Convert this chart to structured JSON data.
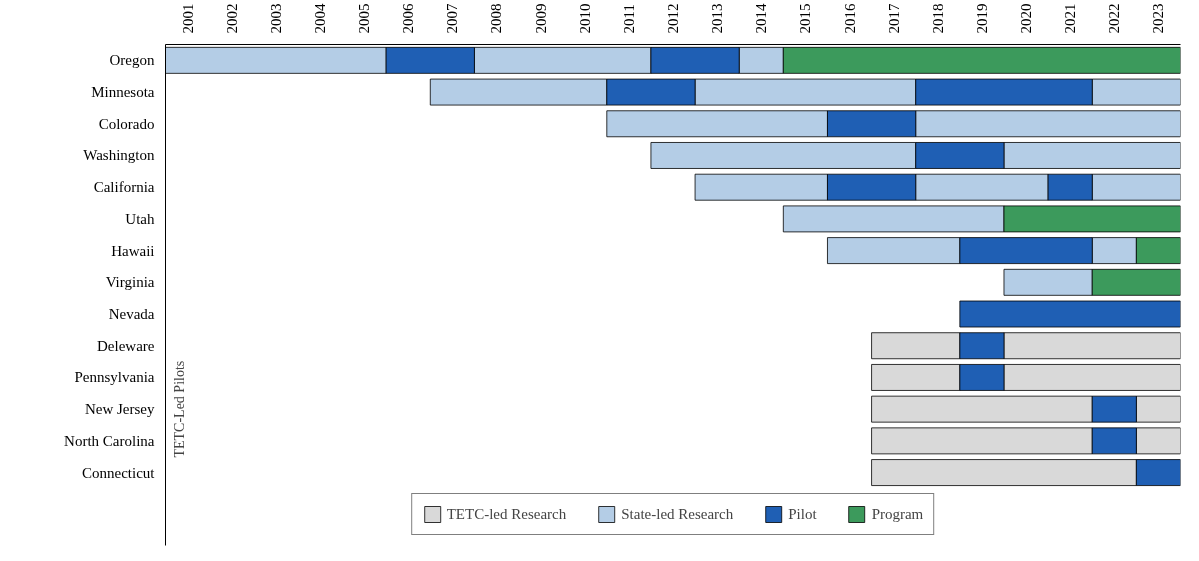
{
  "chart_data": {
    "type": "bar",
    "orientation": "horizontal",
    "grid": false,
    "legend": "bottom",
    "categories": [
      "Oregon",
      "Minnesota",
      "Colorado",
      "Washington",
      "California",
      "Utah",
      "Hawaii",
      "Virginia",
      "Nevada",
      "Deleware",
      "Pennsylvania",
      "New Jersey",
      "North Carolina",
      "Connecticut"
    ],
    "xlim": [
      2001,
      2024
    ],
    "xticks": [
      {
        "value": 2001.5,
        "label": "2001"
      },
      {
        "value": 2002.5,
        "label": "2002"
      },
      {
        "value": 2003.5,
        "label": "2003"
      },
      {
        "value": 2004.5,
        "label": "2004"
      },
      {
        "value": 2005.5,
        "label": "2005"
      },
      {
        "value": 2006.5,
        "label": "2006"
      },
      {
        "value": 2007.5,
        "label": "2007"
      },
      {
        "value": 2008.5,
        "label": "2008"
      },
      {
        "value": 2009.5,
        "label": "2009"
      },
      {
        "value": 2010.5,
        "label": "2010"
      },
      {
        "value": 2011.5,
        "label": "2011"
      },
      {
        "value": 2012.5,
        "label": "2012"
      },
      {
        "value": 2013.5,
        "label": "2013"
      },
      {
        "value": 2014.5,
        "label": "2014"
      },
      {
        "value": 2015.5,
        "label": "2015"
      },
      {
        "value": 2016.5,
        "label": "2016"
      },
      {
        "value": 2017.5,
        "label": "2017"
      },
      {
        "value": 2018.5,
        "label": "2018"
      },
      {
        "value": 2019.5,
        "label": "2019"
      },
      {
        "value": 2020.5,
        "label": "2020"
      },
      {
        "value": 2021.5,
        "label": "2021"
      },
      {
        "value": 2022.5,
        "label": "2022"
      },
      {
        "value": 2023.5,
        "label": "2023"
      }
    ],
    "annotations": [
      "TETC-Led Pilots"
    ],
    "series": [
      {
        "name": "TETC-led Research",
        "color": "#d9d9d9",
        "base": [
          null,
          null,
          null,
          null,
          null,
          null,
          null,
          null,
          null,
          2017,
          2017,
          2017,
          2017,
          2017
        ],
        "values": [
          null,
          null,
          null,
          null,
          null,
          null,
          null,
          null,
          null,
          2,
          2,
          5,
          5,
          6
        ]
      },
      {
        "color": "#d9d9d9",
        "base": [
          null,
          null,
          null,
          null,
          null,
          null,
          null,
          null,
          null,
          2020,
          2020,
          2023,
          2023,
          null
        ],
        "values": [
          null,
          null,
          null,
          null,
          null,
          null,
          null,
          null,
          null,
          4,
          4,
          1,
          1,
          null
        ]
      },
      {
        "name": "State-led Research",
        "color": "#b4cde6",
        "base": [
          2001,
          2007,
          2011,
          2012,
          2013,
          2015,
          2016,
          2020,
          null,
          null,
          null,
          null,
          null,
          null
        ],
        "values": [
          5,
          4,
          5,
          6,
          3,
          5,
          3,
          2,
          null,
          null,
          null,
          null,
          null,
          null
        ]
      },
      {
        "color": "#b4cde6",
        "base": [
          2008,
          2013,
          2018,
          2020,
          2018,
          null,
          2022,
          null,
          null,
          null,
          null,
          null,
          null,
          null
        ],
        "values": [
          4,
          5,
          6,
          4,
          3,
          null,
          1,
          null,
          null,
          null,
          null,
          null,
          null,
          null
        ]
      },
      {
        "color": "#b4cde6",
        "base": [
          2014,
          2022,
          null,
          null,
          2022,
          null,
          null,
          null,
          null,
          null,
          null,
          null,
          null,
          null
        ],
        "values": [
          1,
          2,
          null,
          null,
          2,
          null,
          null,
          null,
          null,
          null,
          null,
          null,
          null,
          null
        ]
      },
      {
        "name": "Pilot",
        "color": "#1f5fb4",
        "base": [
          2006,
          2011,
          2016,
          2018,
          2016,
          null,
          2019,
          null,
          2019,
          2019,
          2019,
          2022,
          2022,
          2023
        ],
        "values": [
          2,
          2,
          2,
          2,
          2,
          null,
          3,
          null,
          5,
          1,
          1,
          1,
          1,
          1
        ]
      },
      {
        "color": "#1f5fb4",
        "base": [
          2012,
          2018,
          null,
          null,
          2021,
          null,
          null,
          null,
          null,
          null,
          null,
          null,
          null,
          null
        ],
        "values": [
          2,
          4,
          null,
          null,
          1,
          null,
          null,
          null,
          null,
          null,
          null,
          null,
          null,
          null
        ]
      },
      {
        "name": "Program",
        "color": "#3c9a5c",
        "base": [
          2015,
          null,
          null,
          null,
          null,
          2020,
          2023,
          2022,
          null,
          null,
          null,
          null,
          null,
          null
        ],
        "values": [
          9,
          null,
          null,
          null,
          null,
          4,
          1,
          2,
          null,
          null,
          null,
          null,
          null,
          null
        ]
      }
    ]
  }
}
